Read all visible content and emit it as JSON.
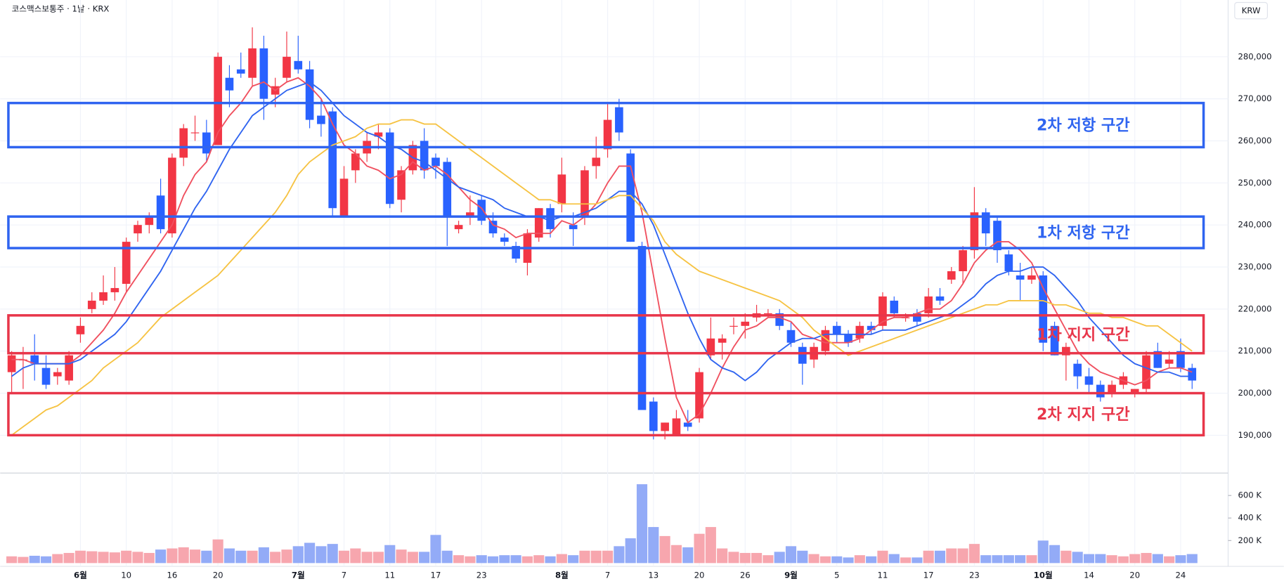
{
  "chart_data": {
    "type": "candlestick",
    "title": "코스맥스보통주 · 1날 · KRX",
    "currency": "KRW",
    "categories": [
      null,
      null,
      null,
      null,
      null,
      null,
      "6월",
      null,
      null,
      null,
      "10",
      null,
      null,
      null,
      "16",
      null,
      null,
      null,
      "20",
      null,
      null,
      null,
      null,
      null,
      null,
      "7월",
      null,
      null,
      null,
      "7",
      null,
      null,
      null,
      "11",
      null,
      null,
      null,
      "17",
      null,
      null,
      null,
      "23",
      null,
      null,
      null,
      null,
      null,
      null,
      "8월",
      null,
      null,
      null,
      "7",
      null,
      null,
      null,
      "13",
      null,
      null,
      null,
      "20",
      null,
      null,
      null,
      "26",
      null,
      null,
      null,
      "9월",
      null,
      null,
      null,
      "5",
      null,
      null,
      null,
      "11",
      null,
      null,
      null,
      "17",
      null,
      null,
      null,
      "23",
      null,
      null,
      null,
      null,
      null,
      "10월",
      null,
      null,
      null,
      "14",
      null,
      null,
      null,
      "20",
      null,
      null,
      null,
      "24",
      null
    ],
    "open": [
      205000,
      208000,
      209000,
      206000,
      204000,
      203000,
      214000,
      220000,
      222000,
      224000,
      226000,
      238000,
      240000,
      247000,
      238000,
      256000,
      262000,
      262000,
      259000,
      275000,
      277000,
      275000,
      282000,
      271000,
      275000,
      279000,
      277000,
      266000,
      267000,
      242000,
      253000,
      257000,
      261000,
      262000,
      246000,
      253000,
      260000,
      256000,
      255000,
      239000,
      242000,
      246000,
      241000,
      237000,
      235000,
      231000,
      237000,
      244000,
      245000,
      240000,
      242000,
      254000,
      258000,
      268000,
      257000,
      235000,
      198000,
      191000,
      190000,
      193000,
      194000,
      209000,
      212000,
      216000,
      216000,
      218000,
      219000,
      219000,
      215000,
      211000,
      208000,
      210000,
      216000,
      214000,
      213000,
      216000,
      216000,
      222000,
      218000,
      219000,
      219000,
      223000,
      227000,
      229000,
      234000,
      243000,
      241000,
      233000,
      228000,
      227000,
      228000,
      216000,
      209000,
      207000,
      204000,
      202000,
      200000,
      202000,
      200000,
      201000,
      210000,
      207000,
      210000,
      206000
    ],
    "high": [
      210000,
      211000,
      214000,
      209000,
      206000,
      210000,
      218000,
      224000,
      228000,
      230000,
      237000,
      241000,
      243000,
      251000,
      257000,
      264000,
      266000,
      265000,
      281000,
      278000,
      281000,
      287000,
      285000,
      275000,
      286000,
      285000,
      279000,
      270000,
      268000,
      254000,
      258000,
      262000,
      264000,
      263000,
      254000,
      260000,
      263000,
      257000,
      256000,
      241000,
      247000,
      247000,
      243000,
      238000,
      236000,
      239000,
      244000,
      245000,
      256000,
      243000,
      254000,
      261000,
      269000,
      270000,
      258000,
      236000,
      199000,
      193000,
      196000,
      196000,
      206000,
      218000,
      214000,
      218000,
      219000,
      221000,
      220000,
      220000,
      217000,
      212000,
      212000,
      216000,
      217000,
      215000,
      217000,
      217000,
      224000,
      223000,
      219000,
      220000,
      225000,
      225000,
      230000,
      235000,
      249000,
      244000,
      242000,
      234000,
      231000,
      230000,
      229000,
      217000,
      212000,
      208000,
      206000,
      203000,
      203000,
      205000,
      201000,
      210000,
      212000,
      210000,
      213000,
      207000
    ],
    "low": [
      200000,
      201000,
      203000,
      201000,
      202000,
      202000,
      212000,
      219000,
      221000,
      222000,
      224000,
      236000,
      238000,
      238000,
      237000,
      254000,
      260000,
      255000,
      259000,
      268000,
      275000,
      273000,
      265000,
      268000,
      274000,
      276000,
      263000,
      261000,
      242000,
      242000,
      250000,
      255000,
      258000,
      244000,
      243000,
      252000,
      251000,
      251000,
      235000,
      238000,
      240000,
      240000,
      237000,
      235000,
      231000,
      228000,
      236000,
      237000,
      243000,
      235000,
      240000,
      251000,
      256000,
      260000,
      236000,
      196000,
      189000,
      189000,
      190000,
      191000,
      193000,
      208000,
      208000,
      214000,
      213000,
      217000,
      218000,
      215000,
      211000,
      202000,
      206000,
      209000,
      212000,
      211000,
      212000,
      214000,
      215000,
      218000,
      217000,
      216000,
      218000,
      221000,
      226000,
      226000,
      232000,
      235000,
      231000,
      228000,
      222000,
      226000,
      210000,
      209000,
      203000,
      201000,
      200000,
      198000,
      199000,
      201000,
      199000,
      200000,
      206000,
      206000,
      205000,
      201000
    ],
    "close": [
      209000,
      208000,
      207000,
      202000,
      205000,
      209000,
      216000,
      222000,
      224000,
      225000,
      236000,
      240000,
      242000,
      239000,
      256000,
      263000,
      262000,
      257000,
      280000,
      272000,
      276000,
      282000,
      270000,
      273000,
      280000,
      277000,
      265000,
      264000,
      244000,
      251000,
      257000,
      260000,
      262000,
      245000,
      253000,
      259000,
      253000,
      254000,
      242000,
      240000,
      243000,
      241000,
      238000,
      236000,
      232000,
      238000,
      244000,
      239000,
      252000,
      239000,
      253000,
      256000,
      265000,
      262000,
      236000,
      196000,
      191000,
      193000,
      194000,
      192000,
      205000,
      213000,
      213000,
      216000,
      217000,
      219000,
      219000,
      216000,
      212000,
      207000,
      211000,
      215000,
      214000,
      212000,
      216000,
      215000,
      223000,
      219000,
      218000,
      217000,
      223000,
      222000,
      229000,
      234000,
      243000,
      238000,
      234000,
      229000,
      227000,
      228000,
      212000,
      209000,
      211000,
      204000,
      202000,
      199000,
      202000,
      204000,
      201000,
      209000,
      206000,
      208000,
      206000,
      203000
    ],
    "up_color": "#f23645",
    "down_color": "#2962ff",
    "up_volume_color": "#f7a6ae",
    "down_volume_color": "#93abf7",
    "ma_lines": [
      {
        "color": "#f0505f",
        "values": [
          208000,
          208000,
          207000,
          207000,
          207000,
          207000,
          209000,
          212000,
          215000,
          219000,
          224000,
          228000,
          232000,
          236000,
          240000,
          247000,
          252000,
          255000,
          262000,
          266000,
          269000,
          273000,
          274000,
          272000,
          274000,
          275000,
          273000,
          270000,
          264000,
          259000,
          257000,
          254000,
          253000,
          251000,
          252000,
          255000,
          253000,
          254000,
          252000,
          249000,
          246000,
          244000,
          240000,
          239000,
          237000,
          238000,
          238000,
          238000,
          241000,
          240000,
          242000,
          245000,
          250000,
          254000,
          254000,
          243000,
          228000,
          213000,
          199000,
          193000,
          195000,
          200000,
          206000,
          211000,
          215000,
          216000,
          218000,
          218000,
          217000,
          214000,
          213000,
          212000,
          212000,
          212000,
          213000,
          215000,
          217000,
          218000,
          218000,
          219000,
          220000,
          220000,
          222000,
          226000,
          231000,
          234000,
          236000,
          236000,
          234000,
          231000,
          225000,
          220000,
          215000,
          210000,
          207000,
          205000,
          204000,
          203000,
          202000,
          203000,
          205000,
          206000,
          206000,
          205000
        ]
      },
      {
        "color": "#2f64f0",
        "values": [
          204000,
          206000,
          207000,
          207000,
          207000,
          207000,
          208000,
          210000,
          212000,
          214000,
          217000,
          221000,
          225000,
          229000,
          234000,
          239000,
          244000,
          248000,
          253000,
          258000,
          262000,
          266000,
          268000,
          270000,
          272000,
          273000,
          274000,
          272000,
          269000,
          266000,
          264000,
          262000,
          261000,
          259000,
          258000,
          256000,
          255000,
          253000,
          251000,
          249000,
          248000,
          247000,
          246000,
          244000,
          243000,
          242000,
          242000,
          241000,
          242000,
          242000,
          243000,
          244000,
          246000,
          248000,
          248000,
          245000,
          240000,
          233000,
          226000,
          219000,
          213000,
          208000,
          206000,
          205000,
          203000,
          205000,
          208000,
          210000,
          212000,
          213000,
          213000,
          214000,
          214000,
          214000,
          214000,
          214000,
          215000,
          215000,
          215000,
          216000,
          217000,
          218000,
          219000,
          221000,
          223000,
          226000,
          228000,
          229000,
          229000,
          230000,
          230000,
          228000,
          225000,
          222000,
          218000,
          215000,
          212000,
          209000,
          207000,
          206000,
          205000,
          205000,
          204000,
          204000
        ]
      },
      {
        "color": "#f6c343",
        "values": [
          190000,
          192000,
          194000,
          196000,
          197000,
          199000,
          201000,
          203000,
          206000,
          208000,
          210000,
          212000,
          215000,
          218000,
          220000,
          222000,
          224000,
          226000,
          228000,
          231000,
          234000,
          237000,
          240000,
          243000,
          247000,
          252000,
          255000,
          257000,
          259000,
          260000,
          261000,
          263000,
          264000,
          264000,
          265000,
          265000,
          264000,
          264000,
          262000,
          260000,
          258000,
          256000,
          254000,
          252000,
          250000,
          248000,
          246000,
          246000,
          245000,
          245000,
          245000,
          245000,
          246000,
          247000,
          247000,
          244000,
          241000,
          236000,
          233000,
          231000,
          229000,
          228000,
          227000,
          226000,
          225000,
          224000,
          223000,
          222000,
          220000,
          218000,
          215000,
          213000,
          211000,
          209000,
          210000,
          211000,
          212000,
          213000,
          214000,
          215000,
          216000,
          217000,
          218000,
          219000,
          220000,
          221000,
          221000,
          222000,
          222000,
          222000,
          222000,
          221000,
          221000,
          220000,
          219000,
          219000,
          218000,
          218000,
          217000,
          216000,
          216000,
          214000,
          212000,
          210000
        ]
      }
    ],
    "volume": [
      60000,
      55000,
      65000,
      60000,
      80000,
      90000,
      110000,
      105000,
      100000,
      95000,
      110000,
      100000,
      90000,
      120000,
      130000,
      140000,
      120000,
      110000,
      210000,
      130000,
      110000,
      110000,
      140000,
      100000,
      120000,
      150000,
      180000,
      150000,
      170000,
      110000,
      130000,
      100000,
      100000,
      160000,
      120000,
      100000,
      100000,
      250000,
      110000,
      70000,
      60000,
      70000,
      60000,
      70000,
      70000,
      60000,
      70000,
      60000,
      80000,
      70000,
      110000,
      110000,
      110000,
      150000,
      220000,
      700000,
      320000,
      240000,
      160000,
      140000,
      260000,
      320000,
      130000,
      100000,
      90000,
      90000,
      70000,
      100000,
      150000,
      110000,
      80000,
      60000,
      60000,
      50000,
      70000,
      60000,
      110000,
      80000,
      50000,
      50000,
      110000,
      110000,
      130000,
      130000,
      170000,
      70000,
      70000,
      70000,
      70000,
      70000,
      200000,
      160000,
      110000,
      100000,
      80000,
      80000,
      70000,
      60000,
      80000,
      90000,
      80000,
      60000,
      70000,
      80000
    ],
    "ylim": [
      181000,
      293500
    ],
    "yticks": [
      {
        "value": 190000,
        "label": "190,000"
      },
      {
        "value": 200000,
        "label": "200,000"
      },
      {
        "value": 210000,
        "label": "210,000"
      },
      {
        "value": 220000,
        "label": "220,000"
      },
      {
        "value": 230000,
        "label": "230,000"
      },
      {
        "value": 240000,
        "label": "240,000"
      },
      {
        "value": 250000,
        "label": "250,000"
      },
      {
        "value": 260000,
        "label": "260,000"
      },
      {
        "value": 270000,
        "label": "270,000"
      },
      {
        "value": 280000,
        "label": "280,000"
      }
    ],
    "volume_ylim": [
      0,
      770000
    ],
    "volume_yticks": [
      {
        "value": 200000,
        "label": "200 K"
      },
      {
        "value": 400000,
        "label": "400 K"
      },
      {
        "value": 600000,
        "label": "600 K"
      }
    ],
    "zones": [
      {
        "label": "2차 저항 구간",
        "color": "#2f64f0",
        "range": [
          258500,
          269000
        ]
      },
      {
        "label": "1차 저항 구간",
        "color": "#2f64f0",
        "range": [
          234500,
          242000
        ]
      },
      {
        "label": "1차 지지 구간",
        "color": "#e8364a",
        "range": [
          209500,
          218500
        ]
      },
      {
        "label": "2차 지지 구간",
        "color": "#e8364a",
        "range": [
          190000,
          200000
        ]
      }
    ]
  }
}
